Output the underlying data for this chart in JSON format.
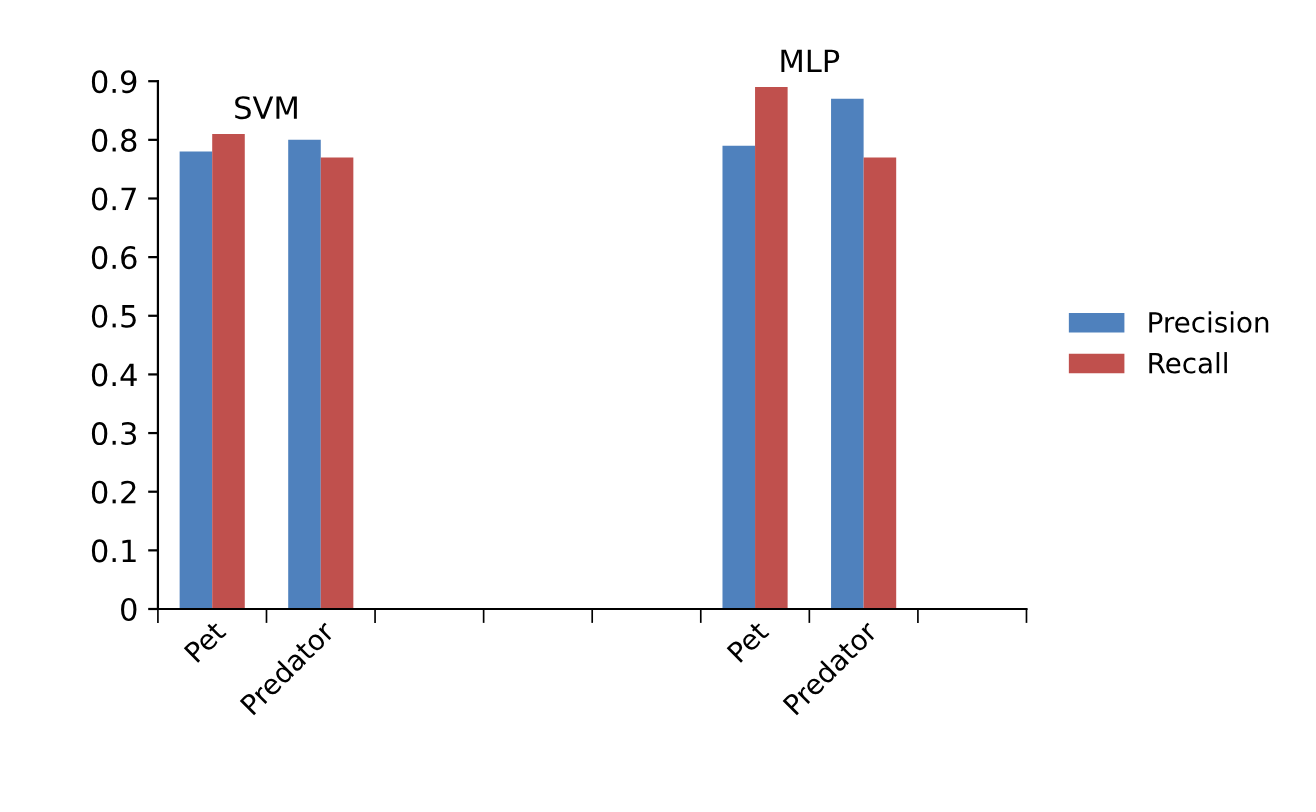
{
  "chart_data": {
    "type": "bar",
    "categories": [
      "Pet",
      "Predator",
      null,
      null,
      null,
      "Pet",
      "Predator",
      null
    ],
    "series": [
      {
        "name": "Precision",
        "color": "#4f81bd",
        "values": [
          0.78,
          0.8,
          null,
          null,
          0,
          0.79,
          0.87,
          null
        ]
      },
      {
        "name": "Recall",
        "color": "#c0504d",
        "values": [
          0.81,
          0.77,
          null,
          null,
          0,
          0.89,
          0.77,
          null
        ]
      }
    ],
    "annotations": [
      "SVM",
      "MLP"
    ],
    "ylim": [
      0,
      0.9
    ],
    "yticks": [
      0,
      0.1,
      0.2,
      0.3,
      0.4,
      0.5,
      0.6,
      0.7,
      0.8,
      0.9
    ],
    "grid": false,
    "legend": "right"
  }
}
